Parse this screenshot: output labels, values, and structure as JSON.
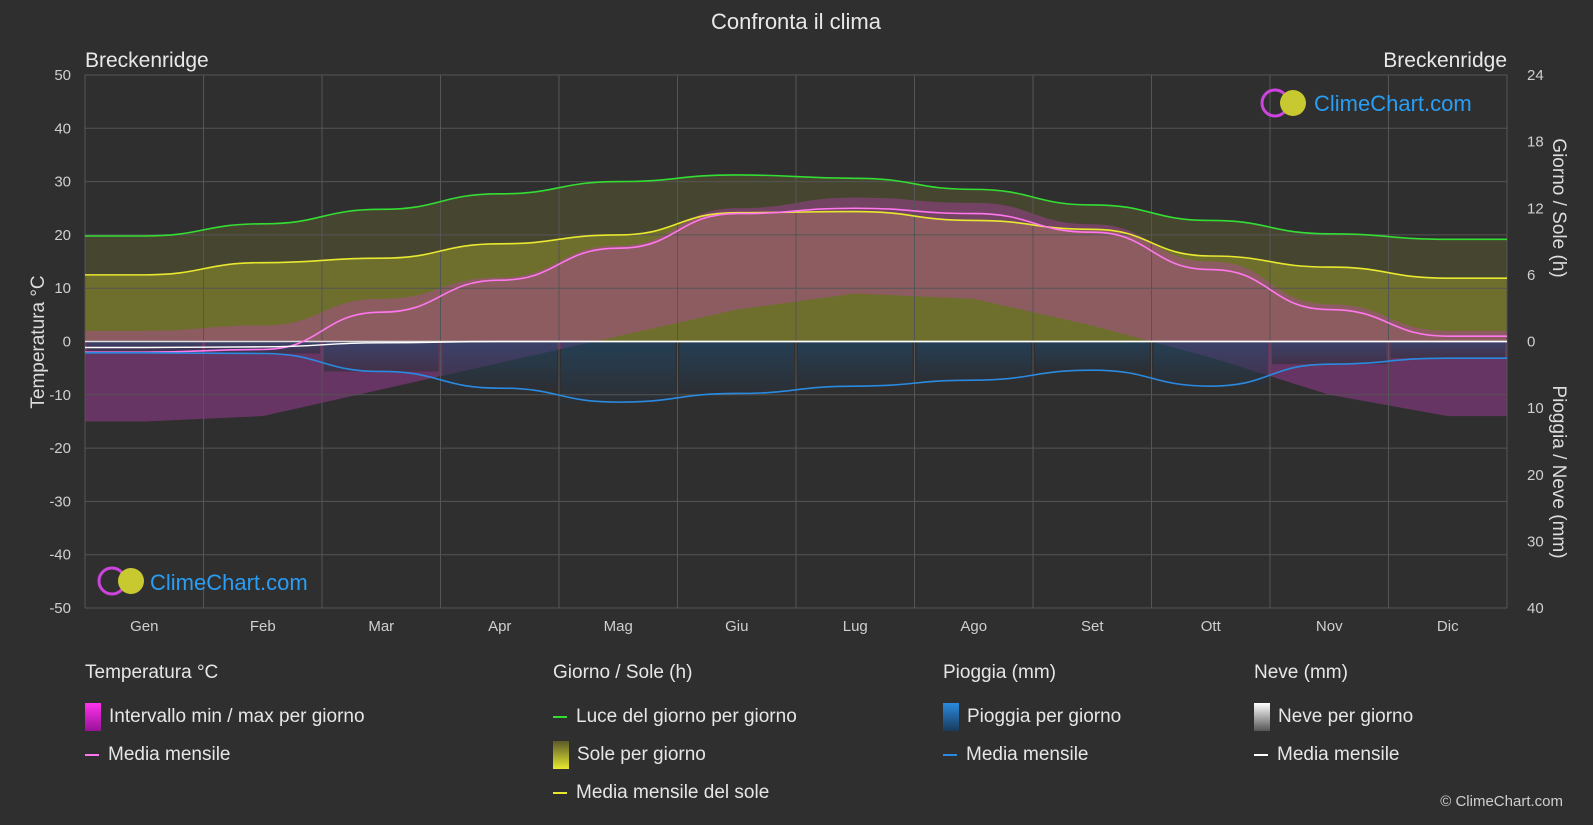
{
  "title": "Confronta il clima",
  "location_left": "Breckenridge",
  "location_right": "Breckenridge",
  "brand": "ClimeChart.com",
  "copyright": "© ClimeChart.com",
  "colors": {
    "background": "#2f2f2f",
    "grid": "#555555",
    "daylight": "#33dd33",
    "sunshine_mean": "#e8e830",
    "temp_mean": "#ff77ee",
    "rain_mean": "#2a8ae0",
    "snow_mean": "#ffffff",
    "brand_text": "#2a9df4"
  },
  "chart_data": {
    "type": "area",
    "months": [
      "Gen",
      "Feb",
      "Mar",
      "Apr",
      "Mag",
      "Giu",
      "Lug",
      "Ago",
      "Set",
      "Ott",
      "Nov",
      "Dic"
    ],
    "left_axis": {
      "label": "Temperatura °C",
      "min": -50,
      "max": 50,
      "ticks": [
        50,
        40,
        30,
        20,
        10,
        0,
        -10,
        -20,
        -30,
        -40,
        -50
      ]
    },
    "right_axis_top": {
      "label": "Giorno / Sole (h)",
      "min": 0,
      "max": 24,
      "ticks": [
        24,
        18,
        12,
        6,
        0
      ]
    },
    "right_axis_bottom": {
      "label": "Pioggia / Neve (mm)",
      "min": 0,
      "max": 40,
      "ticks": [
        0,
        10,
        20,
        30,
        40
      ]
    },
    "grid": true,
    "series": [
      {
        "name": "Luce del giorno per giorno",
        "axis": "hours",
        "values": [
          9.5,
          10.6,
          11.9,
          13.3,
          14.4,
          15.0,
          14.7,
          13.7,
          12.3,
          10.9,
          9.7,
          9.2
        ]
      },
      {
        "name": "Media mensile del sole",
        "axis": "hours",
        "values": [
          6.0,
          7.1,
          7.5,
          8.8,
          9.6,
          11.6,
          11.7,
          10.9,
          10.1,
          7.7,
          6.7,
          5.7
        ]
      },
      {
        "name": "Media mensile",
        "kind": "temperature",
        "axis": "temp",
        "values": [
          -2.0,
          -1.5,
          5.5,
          11.5,
          17.5,
          24.0,
          25.0,
          24.0,
          20.5,
          13.5,
          6.0,
          1.0
        ]
      },
      {
        "name": "Intervallo min / max per giorno",
        "kind": "temperature",
        "axis": "temp",
        "min": [
          -15,
          -14,
          -9,
          -4,
          1,
          6,
          9,
          8,
          3,
          -3,
          -10,
          -14
        ],
        "max": [
          2,
          3,
          8,
          12,
          18,
          25,
          27,
          26,
          22,
          15,
          7,
          2
        ]
      },
      {
        "name": "Media mensile",
        "kind": "rain",
        "axis": "precip",
        "values": [
          1.7,
          1.8,
          4.5,
          7.0,
          9.1,
          7.8,
          6.7,
          5.8,
          4.3,
          6.7,
          3.4,
          2.5
        ]
      },
      {
        "name": "Media mensile",
        "kind": "snow",
        "axis": "precip",
        "values": [
          0.9,
          0.8,
          0.2,
          0.0,
          0.0,
          0.0,
          0.0,
          0.0,
          0.0,
          0.0,
          0.0,
          0.0
        ]
      }
    ]
  },
  "legend": {
    "temperature": {
      "title": "Temperatura °C",
      "items": [
        "Intervallo min / max per giorno",
        "Media mensile"
      ]
    },
    "sun": {
      "title": "Giorno / Sole (h)",
      "items": [
        "Luce del giorno per giorno",
        "Sole per giorno",
        "Media mensile del sole"
      ]
    },
    "rain": {
      "title": "Pioggia (mm)",
      "items": [
        "Pioggia per giorno",
        "Media mensile"
      ]
    },
    "snow": {
      "title": "Neve (mm)",
      "items": [
        "Neve per giorno",
        "Media mensile"
      ]
    }
  }
}
